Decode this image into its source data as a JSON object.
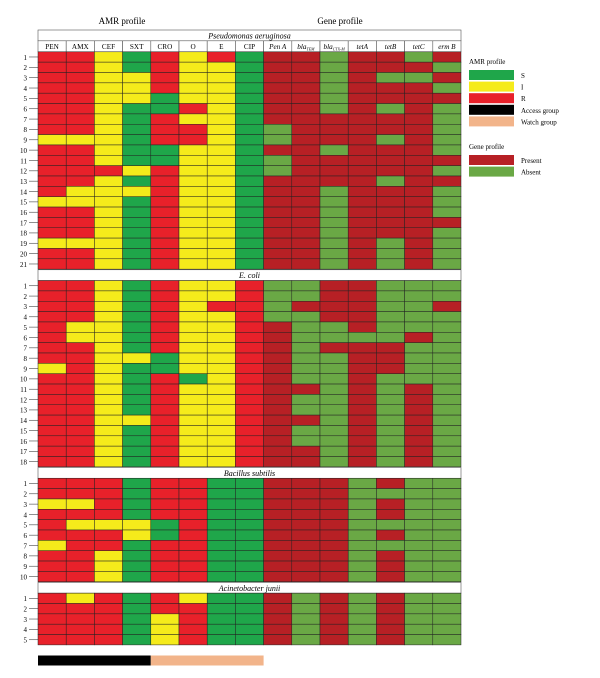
{
  "chart_data": {
    "type": "heatmap",
    "headers": {
      "amr_profile": "AMR profile",
      "gene_profile": "Gene profile"
    },
    "columns": [
      {
        "text": "PEN",
        "italic": false,
        "group": "amr"
      },
      {
        "text": "AMX",
        "italic": false,
        "group": "amr"
      },
      {
        "text": "CEF",
        "italic": false,
        "group": "amr"
      },
      {
        "text": "SXT",
        "italic": false,
        "group": "amr"
      },
      {
        "text": "CRO",
        "italic": false,
        "group": "amr"
      },
      {
        "text": "O",
        "italic": false,
        "group": "amr"
      },
      {
        "text": "E",
        "italic": false,
        "group": "amr"
      },
      {
        "text": "CIP",
        "italic": false,
        "group": "amr"
      },
      {
        "text": "Pen A",
        "italic": true,
        "group": "gene"
      },
      {
        "text": "bla",
        "sub": "TEM",
        "italic": true,
        "group": "gene"
      },
      {
        "text": "bla",
        "sub": "CTX-M",
        "italic": true,
        "group": "gene"
      },
      {
        "text": "tetA",
        "italic": true,
        "group": "gene"
      },
      {
        "text": "tetB",
        "italic": true,
        "group": "gene"
      },
      {
        "text": "tetC",
        "italic": true,
        "group": "gene"
      },
      {
        "text": "erm B",
        "italic": true,
        "group": "gene"
      }
    ],
    "amr_codes": {
      "S": "#1fa64a",
      "I": "#f5eb1b",
      "R": "#e8212a"
    },
    "gene_codes": {
      "P": "#b72025",
      "A": "#6aa845"
    },
    "organisms": [
      {
        "name": "Pseudomonas aeruginosa",
        "rows": [
          {
            "label": "1",
            "amr": "RRISRIRS",
            "gene": "PPAPPAP"
          },
          {
            "label": "2",
            "amr": "RRISRIIS",
            "gene": "PPAPPPA"
          },
          {
            "label": "3",
            "amr": "RRIIRIIS",
            "gene": "PPAPAAP"
          },
          {
            "label": "4",
            "amr": "RRIIRIIS",
            "gene": "PPAPPPA"
          },
          {
            "label": "5",
            "amr": "RRIISIIS",
            "gene": "PPAPPPP"
          },
          {
            "label": "6",
            "amr": "RRISSRIS",
            "gene": "PPAPAPA"
          },
          {
            "label": "7",
            "amr": "RRISRIIS",
            "gene": "PPPPPPA"
          },
          {
            "label": "8",
            "amr": "RRISRRIS",
            "gene": "APPPPPA"
          },
          {
            "label": "9",
            "amr": "IIISRRIS",
            "gene": "APPPAPA"
          },
          {
            "label": "10",
            "amr": "RRISSIIS",
            "gene": "PPAPPPA"
          },
          {
            "label": "11",
            "amr": "RRISSIIS",
            "gene": "APPPPPP"
          },
          {
            "label": "12",
            "amr": "RRRIRIIS",
            "gene": "APPPPPA"
          },
          {
            "label": "13",
            "amr": "RRISRIIS",
            "gene": "PPPPAPP"
          },
          {
            "label": "14",
            "amr": "RIIIRIIS",
            "gene": "PPAPPPA"
          },
          {
            "label": "15",
            "amr": "IIISRIIS",
            "gene": "PPAPPPA"
          },
          {
            "label": "16",
            "amr": "RRISRIIS",
            "gene": "PPAPPPA"
          },
          {
            "label": "17",
            "amr": "RRISRIIS",
            "gene": "PPAPPPP"
          },
          {
            "label": "18",
            "amr": "RRISRIIS",
            "gene": "PPAPPPA"
          },
          {
            "label": "19",
            "amr": "IIISRIIS",
            "gene": "PPAPAPA"
          },
          {
            "label": "20",
            "amr": "RRISRIIS",
            "gene": "PPAPAPA"
          },
          {
            "label": "21",
            "amr": "RRISRIIS",
            "gene": "PPAPAPA"
          }
        ]
      },
      {
        "name": "E. coli",
        "rows": [
          {
            "label": "1",
            "amr": "RRISRIIR",
            "gene": "AAPPAAA"
          },
          {
            "label": "2",
            "amr": "RRISRIIR",
            "gene": "AAPPAAA"
          },
          {
            "label": "3",
            "amr": "RRISRIRR",
            "gene": "APPPAAP"
          },
          {
            "label": "4",
            "amr": "RRISRIIR",
            "gene": "AAPPAAA"
          },
          {
            "label": "5",
            "amr": "RIISRIIR",
            "gene": "PAAPAAA"
          },
          {
            "label": "6",
            "amr": "RIISRIIR",
            "gene": "PAAAAPA"
          },
          {
            "label": "7",
            "amr": "RRISRIIR",
            "gene": "PAPPPAA"
          },
          {
            "label": "8",
            "amr": "RRIISIIR",
            "gene": "PAAPPAA"
          },
          {
            "label": "9",
            "amr": "IRISSIIR",
            "gene": "PAAPPAA"
          },
          {
            "label": "10",
            "amr": "RRISRSIR",
            "gene": "PAAPAAA"
          },
          {
            "label": "11",
            "amr": "RRISRIIR",
            "gene": "PPAPAPA"
          },
          {
            "label": "12",
            "amr": "RRISRIIR",
            "gene": "PAAPAPA"
          },
          {
            "label": "13",
            "amr": "RRISRIIR",
            "gene": "PAAPAPA"
          },
          {
            "label": "14",
            "amr": "RRIIRIIR",
            "gene": "PPAPAPA"
          },
          {
            "label": "15",
            "amr": "RRISRIIR",
            "gene": "PAAPAPA"
          },
          {
            "label": "16",
            "amr": "RRISRIIR",
            "gene": "PAAPAPA"
          },
          {
            "label": "17",
            "amr": "RRISRIIR",
            "gene": "PPAPAPA"
          },
          {
            "label": "18",
            "amr": "RRISRIIR",
            "gene": "PPAPAPA"
          }
        ]
      },
      {
        "name": "Bacillus subtilis",
        "rows": [
          {
            "label": "1",
            "amr": "RRRSRRSS",
            "gene": "PPPAPAA"
          },
          {
            "label": "2",
            "amr": "RRRSRRSS",
            "gene": "PPPAAAA"
          },
          {
            "label": "3",
            "amr": "IIRSRRSS",
            "gene": "PPPAPAA"
          },
          {
            "label": "4",
            "amr": "RRRSRRSS",
            "gene": "PPPAPAA"
          },
          {
            "label": "5",
            "amr": "RIIISRSS",
            "gene": "PPPAAAA"
          },
          {
            "label": "6",
            "amr": "RRRISRSS",
            "gene": "PPPAPAA"
          },
          {
            "label": "7",
            "amr": "IRRSRRSS",
            "gene": "PPPAAAA"
          },
          {
            "label": "8",
            "amr": "RRISRRSS",
            "gene": "PPPAPAA"
          },
          {
            "label": "9",
            "amr": "RRISRRSS",
            "gene": "PPPAPAA"
          },
          {
            "label": "10",
            "amr": "RRISRRSS",
            "gene": "PPPAPAA"
          }
        ]
      },
      {
        "name": "Acinetobacter junii",
        "rows": [
          {
            "label": "1",
            "amr": "RIRSRISS",
            "gene": "PAPAPAA"
          },
          {
            "label": "2",
            "amr": "RRRSRRSS",
            "gene": "PAPAPAA"
          },
          {
            "label": "3",
            "amr": "RRRSIRSS",
            "gene": "PAPAPAA"
          },
          {
            "label": "4",
            "amr": "RRRSIRSS",
            "gene": "PAPAPAA"
          },
          {
            "label": "5",
            "amr": "RRRSIRSS",
            "gene": "PAPAPAA"
          }
        ]
      }
    ],
    "group_bar": {
      "access_group_columns": 4,
      "watch_group_columns": 4,
      "access_color": "#000000",
      "watch_color": "#f2b48a"
    },
    "legend": {
      "placement": "right",
      "amr_title": "AMR profile",
      "amr_items": [
        {
          "label": "S",
          "color": "#1fa64a"
        },
        {
          "label": "I",
          "color": "#f5eb1b"
        },
        {
          "label": "R",
          "color": "#e8212a"
        },
        {
          "label": "Access group",
          "color": "#000000"
        },
        {
          "label": "Watch group",
          "color": "#f2b48a"
        }
      ],
      "gene_title": "Gene profile",
      "gene_items": [
        {
          "label": "Present",
          "color": "#b72025"
        },
        {
          "label": "Absent",
          "color": "#6aa845"
        }
      ]
    }
  }
}
